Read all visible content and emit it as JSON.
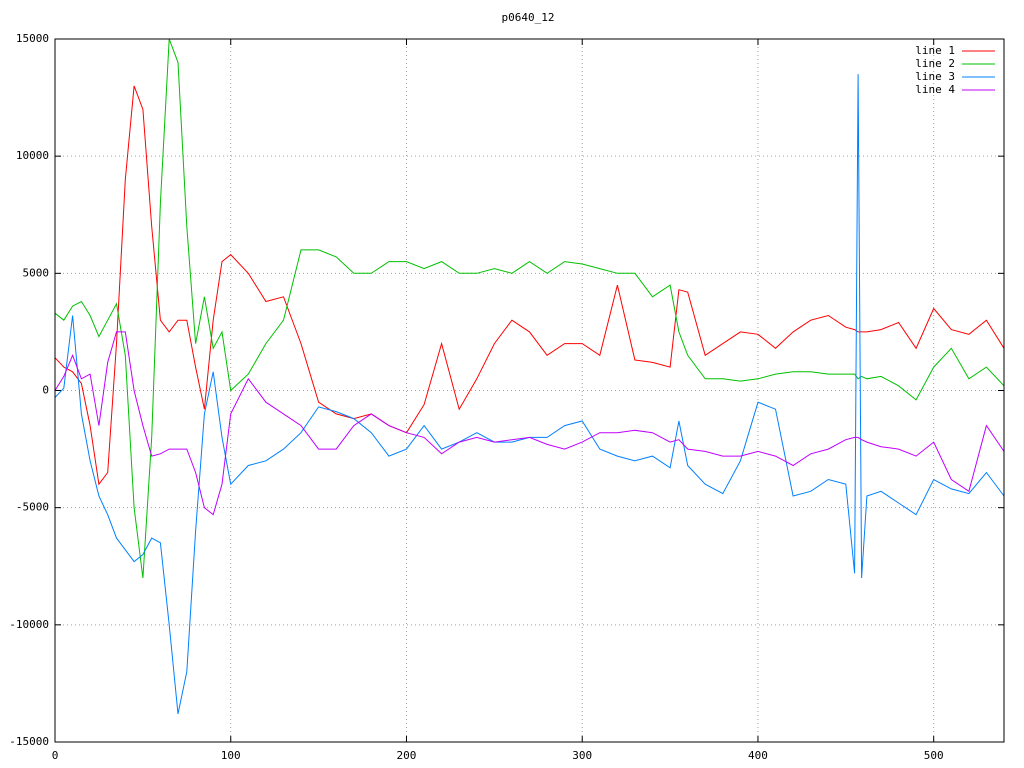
{
  "chart_data": {
    "type": "line",
    "title": "p0640_12",
    "x": [
      0,
      5,
      10,
      15,
      20,
      25,
      30,
      35,
      40,
      45,
      50,
      55,
      60,
      65,
      70,
      75,
      80,
      85,
      90,
      95,
      100,
      110,
      120,
      130,
      140,
      150,
      160,
      170,
      180,
      190,
      200,
      210,
      220,
      230,
      240,
      250,
      260,
      270,
      280,
      290,
      300,
      310,
      320,
      330,
      340,
      350,
      355,
      360,
      370,
      380,
      390,
      400,
      410,
      420,
      430,
      440,
      450,
      455,
      457,
      459,
      462,
      470,
      480,
      490,
      500,
      510,
      520,
      530,
      540
    ],
    "series": [
      {
        "name": "line 1",
        "color": "#ff0000",
        "values": [
          1400,
          1000,
          800,
          300,
          -1500,
          -4000,
          -3500,
          2000,
          9000,
          13000,
          12000,
          7000,
          3000,
          2500,
          3000,
          3000,
          1000,
          -800,
          3000,
          5500,
          5800,
          5000,
          3800,
          4000,
          2000,
          -500,
          -1000,
          -1200,
          -1000,
          -1500,
          -1800,
          -600,
          2000,
          -800,
          500,
          2000,
          3000,
          2500,
          1500,
          2000,
          2000,
          1500,
          4500,
          1300,
          1200,
          1000,
          4300,
          4200,
          1500,
          2000,
          2500,
          2400,
          1800,
          2500,
          3000,
          3200,
          2700,
          2600,
          2500,
          2500,
          2500,
          2600,
          2900,
          1800,
          3500,
          2600,
          2400,
          3000,
          1800
        ]
      },
      {
        "name": "line 2",
        "color": "#00c000",
        "values": [
          3300,
          3000,
          3600,
          3800,
          3200,
          2300,
          3000,
          3700,
          1500,
          -5000,
          -8000,
          -2000,
          8000,
          15000,
          14000,
          7000,
          2000,
          4000,
          1800,
          2500,
          0,
          700,
          2000,
          3000,
          6000,
          6000,
          5700,
          5000,
          5000,
          5500,
          5500,
          5200,
          5500,
          5000,
          5000,
          5200,
          5000,
          5500,
          5000,
          5500,
          5400,
          5200,
          5000,
          5000,
          4000,
          4500,
          2500,
          1500,
          500,
          500,
          400,
          500,
          700,
          800,
          800,
          700,
          700,
          700,
          500,
          600,
          500,
          600,
          200,
          -400,
          1000,
          1800,
          500,
          1000,
          200
        ]
      },
      {
        "name": "line 3",
        "color": "#0080ff",
        "values": [
          -300,
          100,
          3200,
          -1000,
          -3000,
          -4500,
          -5300,
          -6300,
          -6800,
          -7300,
          -7000,
          -6300,
          -6500,
          -10000,
          -13800,
          -12000,
          -6000,
          -1000,
          800,
          -2000,
          -4000,
          -3200,
          -3000,
          -2500,
          -1800,
          -700,
          -900,
          -1200,
          -1800,
          -2800,
          -2500,
          -1500,
          -2500,
          -2200,
          -1800,
          -2200,
          -2200,
          -2000,
          -2000,
          -1500,
          -1300,
          -2500,
          -2800,
          -3000,
          -2800,
          -3300,
          -1300,
          -3200,
          -4000,
          -4400,
          -3000,
          -500,
          -800,
          -4500,
          -4300,
          -3800,
          -4000,
          -7800,
          13500,
          -8000,
          -4500,
          -4300,
          -4800,
          -5300,
          -3800,
          -4200,
          -4400,
          -3500,
          -4500
        ]
      },
      {
        "name": "line 4",
        "color": "#c000ff",
        "values": [
          0,
          600,
          1500,
          500,
          700,
          -1500,
          1200,
          2500,
          2500,
          0,
          -1500,
          -2800,
          -2700,
          -2500,
          -2500,
          -2500,
          -3500,
          -5000,
          -5300,
          -4000,
          -1000,
          500,
          -500,
          -1000,
          -1500,
          -2500,
          -2500,
          -1500,
          -1000,
          -1500,
          -1800,
          -2000,
          -2700,
          -2200,
          -2000,
          -2200,
          -2100,
          -2000,
          -2300,
          -2500,
          -2200,
          -1800,
          -1800,
          -1700,
          -1800,
          -2200,
          -2100,
          -2500,
          -2600,
          -2800,
          -2800,
          -2600,
          -2800,
          -3200,
          -2700,
          -2500,
          -2100,
          -2000,
          -2000,
          -2100,
          -2200,
          -2400,
          -2500,
          -2800,
          -2200,
          -3800,
          -4300,
          -1500,
          -2600
        ]
      }
    ],
    "xlim": [
      0,
      540
    ],
    "xticks": [
      0,
      100,
      200,
      300,
      400,
      500
    ],
    "ylim": [
      -15000,
      15000
    ],
    "yticks": [
      -15000,
      -10000,
      -5000,
      0,
      5000,
      10000,
      15000
    ],
    "grid": true,
    "legend": "top-right"
  }
}
